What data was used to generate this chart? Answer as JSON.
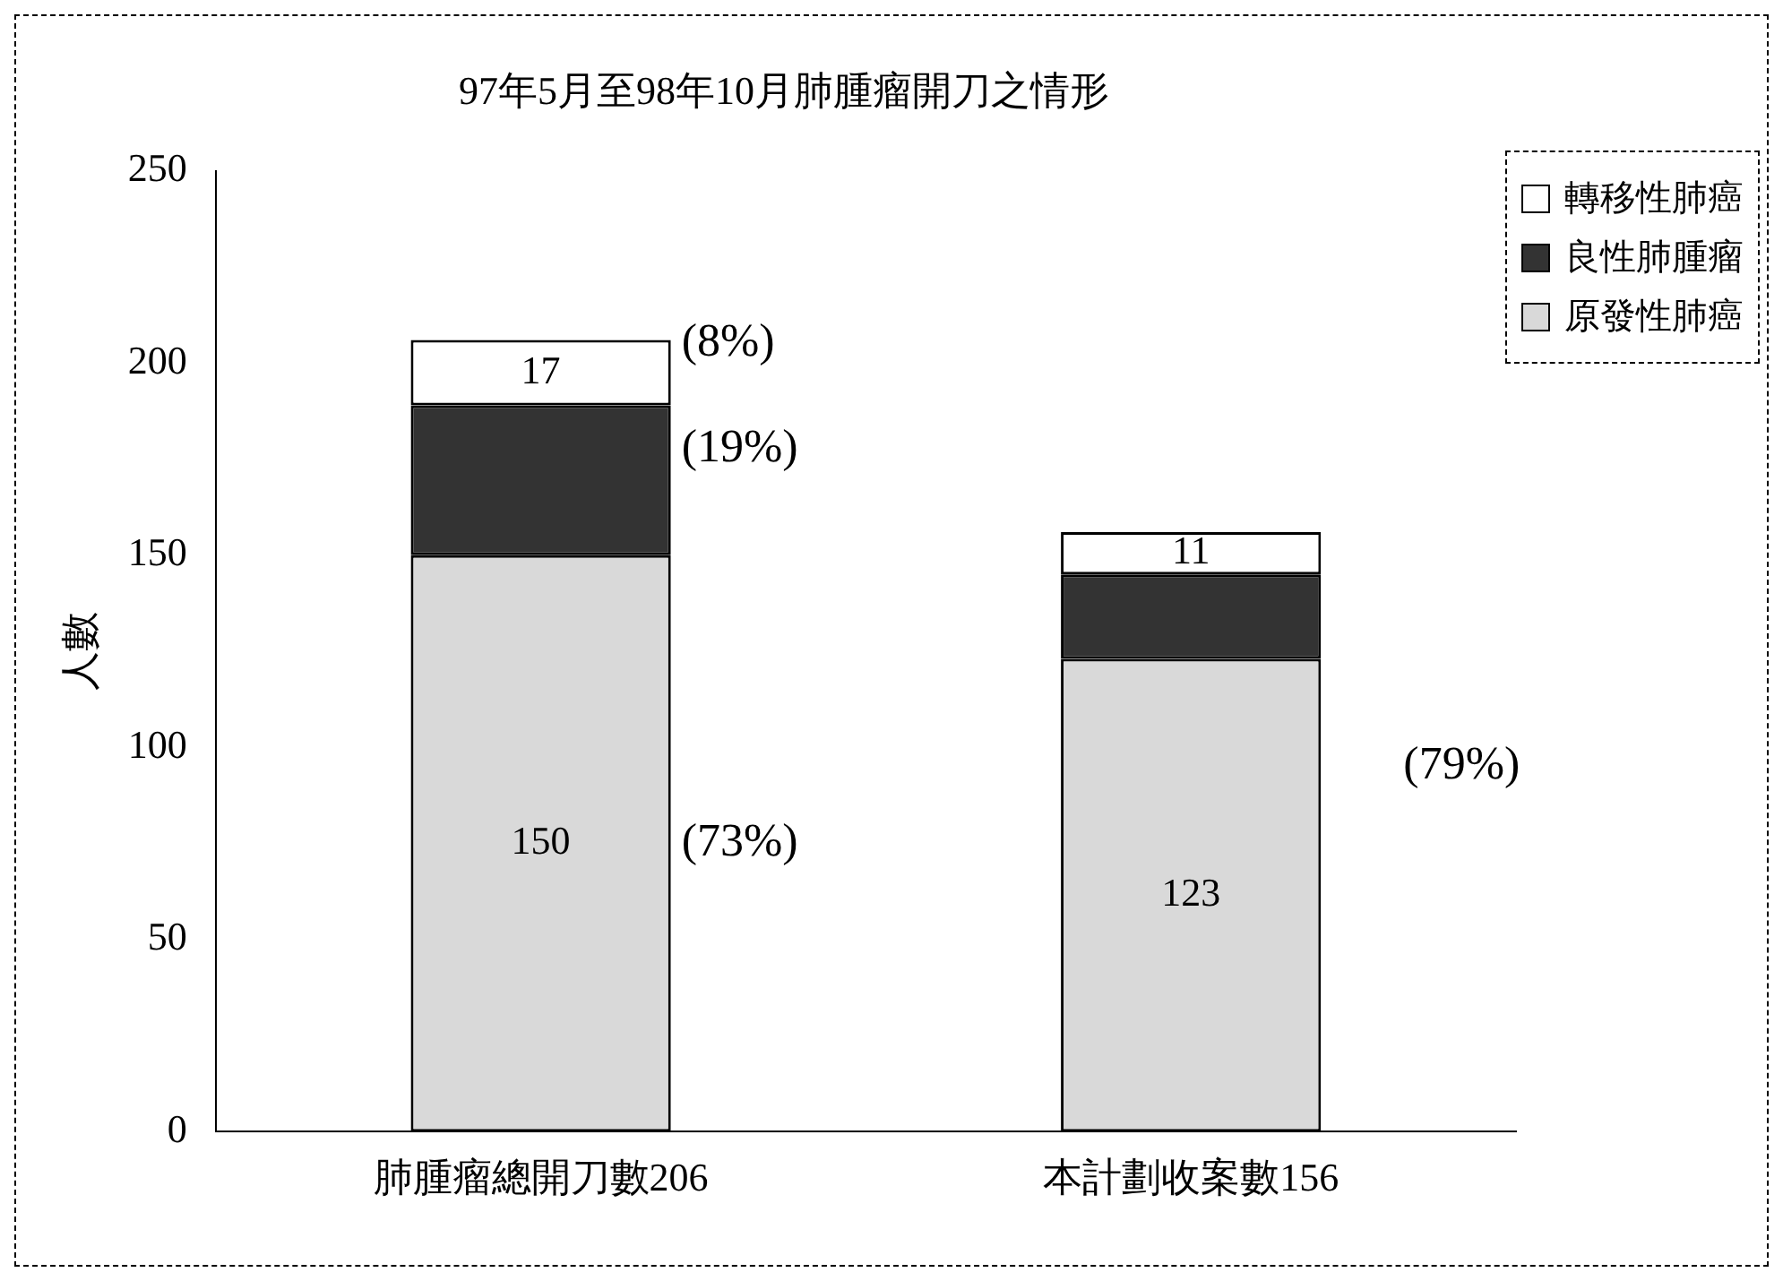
{
  "chart_data": {
    "type": "bar",
    "title": "97年5月至98年10月肺腫瘤開刀之情形",
    "ylabel": "人數",
    "stacked": true,
    "categories": [
      "肺腫瘤總開刀數206",
      "本計劃收案數156"
    ],
    "series": [
      {
        "name": "原發性肺癌",
        "color": "#d9d9d9",
        "values": [
          150,
          123
        ],
        "value_labels": [
          "150",
          "123"
        ]
      },
      {
        "name": "良性肺腫瘤",
        "color": "#333333",
        "values": [
          39,
          22
        ],
        "value_labels": [
          null,
          null
        ]
      },
      {
        "name": "轉移性肺癌",
        "color": "#ffffff",
        "values": [
          17,
          11
        ],
        "value_labels": [
          "17",
          "11"
        ]
      }
    ],
    "ylim": [
      0,
      250
    ],
    "yticks": [
      0,
      50,
      100,
      150,
      200,
      250
    ],
    "grid": false,
    "legend": "top right",
    "annotations": [
      "(8%)",
      "(19%)",
      "(73%)",
      "(79%)"
    ]
  }
}
